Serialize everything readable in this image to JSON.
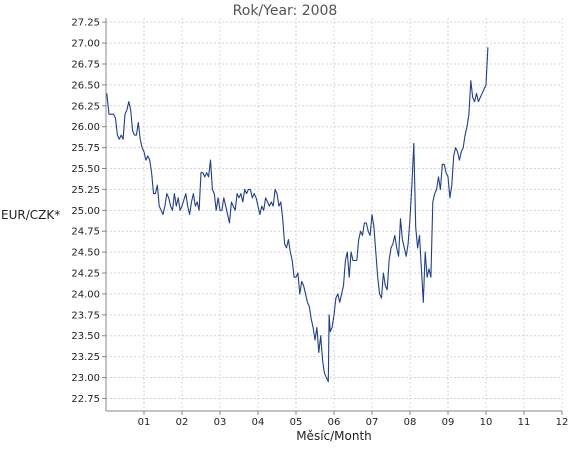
{
  "chart_data": {
    "type": "line",
    "title": "Rok/Year: 2008",
    "xlabel": "Měsíc/Month",
    "ylabel": "EUR/CZK*",
    "xlim": [
      0,
      12
    ],
    "ylim": [
      22.6,
      27.3
    ],
    "x_ticks": [
      1,
      2,
      3,
      4,
      5,
      6,
      7,
      8,
      9,
      10,
      11,
      12
    ],
    "x_tick_labels": [
      "01",
      "02",
      "03",
      "04",
      "05",
      "06",
      "07",
      "08",
      "09",
      "10",
      "11",
      "12"
    ],
    "y_ticks": [
      22.75,
      23.0,
      23.25,
      23.5,
      23.75,
      24.0,
      24.25,
      24.5,
      24.75,
      25.0,
      25.25,
      25.5,
      25.75,
      26.0,
      26.25,
      26.5,
      26.75,
      27.0,
      27.25
    ],
    "y_tick_labels": [
      "22.75",
      "23.00",
      "23.25",
      "23.50",
      "23.75",
      "24.00",
      "24.25",
      "24.50",
      "24.75",
      "25.00",
      "25.25",
      "25.50",
      "25.75",
      "26.00",
      "26.25",
      "26.50",
      "26.75",
      "27.00",
      "27.25"
    ],
    "grid": true,
    "line_color": "#1f3f8f",
    "series": [
      {
        "values": [
          [
            0.02,
            26.4
          ],
          [
            0.08,
            26.15
          ],
          [
            0.2,
            26.15
          ],
          [
            0.25,
            26.1
          ],
          [
            0.3,
            25.9
          ],
          [
            0.35,
            25.85
          ],
          [
            0.4,
            25.9
          ],
          [
            0.45,
            25.85
          ],
          [
            0.5,
            26.15
          ],
          [
            0.55,
            26.2
          ],
          [
            0.6,
            26.3
          ],
          [
            0.65,
            26.2
          ],
          [
            0.7,
            25.95
          ],
          [
            0.75,
            25.9
          ],
          [
            0.8,
            25.9
          ],
          [
            0.85,
            26.05
          ],
          [
            0.9,
            25.85
          ],
          [
            0.95,
            25.75
          ],
          [
            1.0,
            25.7
          ],
          [
            1.05,
            25.6
          ],
          [
            1.1,
            25.65
          ],
          [
            1.15,
            25.6
          ],
          [
            1.2,
            25.45
          ],
          [
            1.25,
            25.2
          ],
          [
            1.3,
            25.2
          ],
          [
            1.35,
            25.3
          ],
          [
            1.4,
            25.05
          ],
          [
            1.45,
            25.0
          ],
          [
            1.5,
            24.95
          ],
          [
            1.55,
            25.05
          ],
          [
            1.6,
            25.2
          ],
          [
            1.65,
            25.15
          ],
          [
            1.7,
            25.05
          ],
          [
            1.75,
            25.0
          ],
          [
            1.8,
            25.2
          ],
          [
            1.85,
            25.05
          ],
          [
            1.9,
            25.15
          ],
          [
            1.95,
            25.0
          ],
          [
            2.0,
            25.05
          ],
          [
            2.1,
            25.2
          ],
          [
            2.15,
            25.05
          ],
          [
            2.2,
            24.95
          ],
          [
            2.25,
            25.1
          ],
          [
            2.3,
            25.2
          ],
          [
            2.35,
            25.05
          ],
          [
            2.4,
            25.1
          ],
          [
            2.45,
            25.0
          ],
          [
            2.5,
            25.45
          ],
          [
            2.55,
            25.45
          ],
          [
            2.6,
            25.4
          ],
          [
            2.65,
            25.45
          ],
          [
            2.7,
            25.4
          ],
          [
            2.75,
            25.6
          ],
          [
            2.8,
            25.25
          ],
          [
            2.85,
            25.2
          ],
          [
            2.9,
            25.0
          ],
          [
            2.95,
            25.15
          ],
          [
            3.0,
            25.0
          ],
          [
            3.05,
            25.0
          ],
          [
            3.1,
            25.15
          ],
          [
            3.15,
            25.05
          ],
          [
            3.2,
            24.95
          ],
          [
            3.25,
            24.85
          ],
          [
            3.3,
            25.1
          ],
          [
            3.35,
            25.05
          ],
          [
            3.4,
            25.0
          ],
          [
            3.45,
            25.2
          ],
          [
            3.5,
            25.15
          ],
          [
            3.55,
            25.2
          ],
          [
            3.6,
            25.1
          ],
          [
            3.65,
            25.25
          ],
          [
            3.7,
            25.2
          ],
          [
            3.75,
            25.25
          ],
          [
            3.8,
            25.25
          ],
          [
            3.85,
            25.15
          ],
          [
            3.9,
            25.2
          ],
          [
            3.95,
            25.15
          ],
          [
            4.0,
            25.05
          ],
          [
            4.05,
            24.95
          ],
          [
            4.1,
            25.05
          ],
          [
            4.15,
            25.0
          ],
          [
            4.2,
            25.15
          ],
          [
            4.25,
            25.1
          ],
          [
            4.3,
            25.05
          ],
          [
            4.35,
            25.1
          ],
          [
            4.4,
            25.05
          ],
          [
            4.45,
            25.25
          ],
          [
            4.5,
            25.2
          ],
          [
            4.55,
            25.05
          ],
          [
            4.6,
            25.1
          ],
          [
            4.65,
            24.9
          ],
          [
            4.7,
            24.6
          ],
          [
            4.75,
            24.55
          ],
          [
            4.8,
            24.65
          ],
          [
            4.85,
            24.5
          ],
          [
            4.9,
            24.4
          ],
          [
            4.95,
            24.2
          ],
          [
            5.0,
            24.2
          ],
          [
            5.05,
            24.25
          ],
          [
            5.1,
            24.0
          ],
          [
            5.15,
            24.15
          ],
          [
            5.2,
            24.1
          ],
          [
            5.25,
            24.0
          ],
          [
            5.3,
            23.9
          ],
          [
            5.35,
            23.85
          ],
          [
            5.4,
            23.7
          ],
          [
            5.45,
            23.6
          ],
          [
            5.5,
            23.45
          ],
          [
            5.55,
            23.6
          ],
          [
            5.6,
            23.3
          ],
          [
            5.65,
            23.5
          ],
          [
            5.7,
            23.2
          ],
          [
            5.75,
            23.05
          ],
          [
            5.8,
            23.0
          ],
          [
            5.85,
            22.95
          ],
          [
            5.87,
            23.75
          ],
          [
            5.9,
            23.55
          ],
          [
            5.95,
            23.6
          ],
          [
            6.0,
            23.75
          ],
          [
            6.05,
            23.95
          ],
          [
            6.1,
            24.0
          ],
          [
            6.15,
            23.9
          ],
          [
            6.2,
            24.0
          ],
          [
            6.25,
            24.1
          ],
          [
            6.3,
            24.4
          ],
          [
            6.35,
            24.5
          ],
          [
            6.4,
            24.2
          ],
          [
            6.45,
            24.5
          ],
          [
            6.5,
            24.4
          ],
          [
            6.55,
            24.4
          ],
          [
            6.6,
            24.4
          ],
          [
            6.65,
            24.65
          ],
          [
            6.7,
            24.75
          ],
          [
            6.75,
            24.7
          ],
          [
            6.8,
            24.85
          ],
          [
            6.85,
            24.85
          ],
          [
            6.9,
            24.75
          ],
          [
            6.95,
            24.7
          ],
          [
            7.0,
            24.95
          ],
          [
            7.05,
            24.8
          ],
          [
            7.1,
            24.5
          ],
          [
            7.15,
            24.2
          ],
          [
            7.2,
            24.0
          ],
          [
            7.25,
            23.95
          ],
          [
            7.3,
            24.25
          ],
          [
            7.35,
            24.1
          ],
          [
            7.4,
            24.05
          ],
          [
            7.45,
            24.4
          ],
          [
            7.5,
            24.55
          ],
          [
            7.55,
            24.6
          ],
          [
            7.6,
            24.7
          ],
          [
            7.65,
            24.55
          ],
          [
            7.7,
            24.45
          ],
          [
            7.75,
            24.9
          ],
          [
            7.8,
            24.65
          ],
          [
            7.85,
            24.55
          ],
          [
            7.9,
            24.45
          ],
          [
            7.95,
            24.6
          ],
          [
            8.0,
            24.9
          ],
          [
            8.05,
            25.3
          ],
          [
            8.1,
            25.8
          ],
          [
            8.15,
            24.8
          ],
          [
            8.2,
            24.55
          ],
          [
            8.25,
            24.7
          ],
          [
            8.3,
            24.3
          ],
          [
            8.35,
            23.9
          ],
          [
            8.4,
            24.5
          ],
          [
            8.45,
            24.2
          ],
          [
            8.5,
            24.3
          ],
          [
            8.55,
            24.2
          ],
          [
            8.6,
            25.1
          ],
          [
            8.65,
            25.2
          ],
          [
            8.7,
            25.25
          ],
          [
            8.75,
            25.4
          ],
          [
            8.8,
            25.25
          ],
          [
            8.85,
            25.55
          ],
          [
            8.9,
            25.55
          ],
          [
            8.95,
            25.45
          ],
          [
            9.0,
            25.4
          ],
          [
            9.05,
            25.15
          ],
          [
            9.1,
            25.3
          ],
          [
            9.15,
            25.65
          ],
          [
            9.2,
            25.75
          ],
          [
            9.25,
            25.7
          ],
          [
            9.3,
            25.6
          ],
          [
            9.35,
            25.7
          ],
          [
            9.4,
            25.75
          ],
          [
            9.45,
            25.9
          ],
          [
            9.5,
            26.0
          ],
          [
            9.55,
            26.15
          ],
          [
            9.6,
            26.55
          ],
          [
            9.65,
            26.35
          ],
          [
            9.7,
            26.3
          ],
          [
            9.75,
            26.4
          ],
          [
            9.8,
            26.3
          ],
          [
            9.85,
            26.35
          ],
          [
            9.9,
            26.4
          ],
          [
            9.95,
            26.45
          ],
          [
            10.0,
            26.5
          ],
          [
            10.05,
            26.95
          ]
        ]
      }
    ]
  }
}
